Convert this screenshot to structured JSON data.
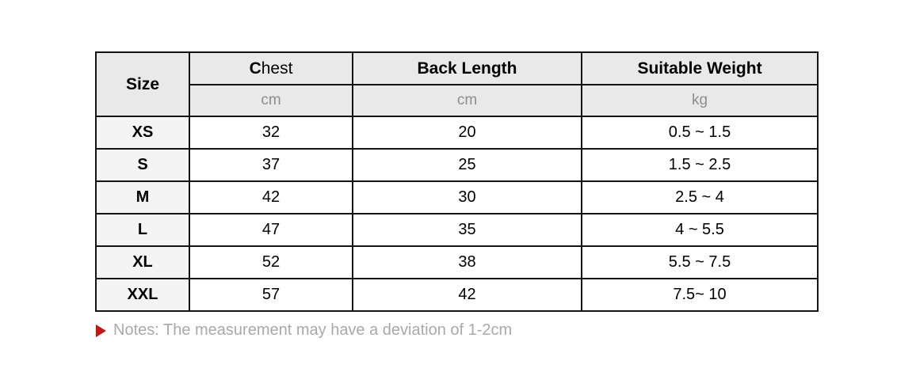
{
  "table": {
    "columns": {
      "size_label": "Size",
      "chest_initial": "C",
      "chest_rest": "hest",
      "back_length_label": "Back Length",
      "weight_label": "Suitable Weight",
      "chest_unit": "cm",
      "back_length_unit": "cm",
      "weight_unit": "kg"
    },
    "rows": [
      {
        "size": "XS",
        "chest": "32",
        "back_length": "20",
        "weight": "0.5 ~ 1.5"
      },
      {
        "size": "S",
        "chest": "37",
        "back_length": "25",
        "weight": "1.5 ~ 2.5"
      },
      {
        "size": "M",
        "chest": "42",
        "back_length": "30",
        "weight": "2.5 ~ 4"
      },
      {
        "size": "L",
        "chest": "47",
        "back_length": "35",
        "weight": "4 ~ 5.5"
      },
      {
        "size": "XL",
        "chest": "52",
        "back_length": "38",
        "weight": "5.5 ~ 7.5"
      },
      {
        "size": "XXL",
        "chest": "57",
        "back_length": "42",
        "weight": "7.5~ 10"
      }
    ]
  },
  "note": {
    "text": "Notes: The measurement may have a deviation of 1-2cm"
  },
  "colors": {
    "header_bg": "#e9e9e9",
    "size_col_bg": "#f4f4f4",
    "border": "#141414",
    "unit_text": "#8e8e8e",
    "note_text": "#a9a9a9",
    "note_marker": "#cc1111"
  }
}
